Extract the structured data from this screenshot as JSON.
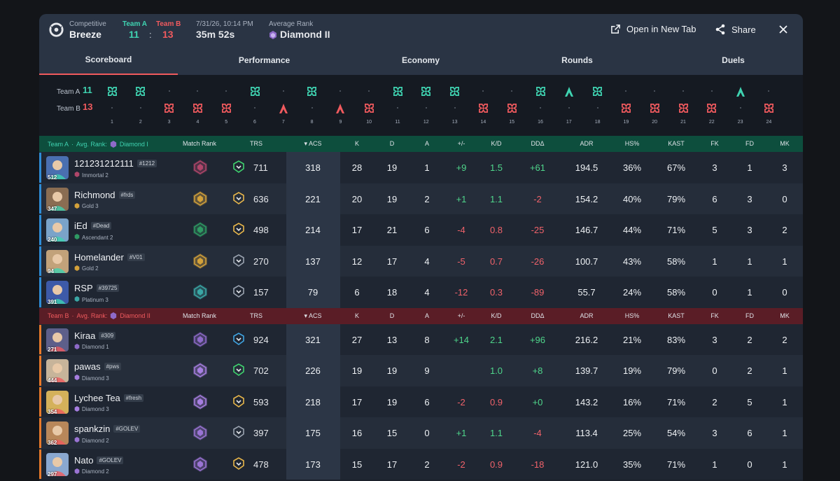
{
  "header": {
    "mode_label": "Competitive",
    "map": "Breeze",
    "team_a_label": "Team A",
    "team_b_label": "Team B",
    "team_a_score": "11",
    "team_b_score": "13",
    "colon": ":",
    "datetime": "7/31/26, 10:14 PM",
    "duration": "35m 52s",
    "avg_rank_label": "Average Rank",
    "avg_rank": "Diamond II",
    "open_new_tab": "Open in New Tab",
    "share": "Share"
  },
  "tabs": [
    {
      "label": "Scoreboard",
      "active": true
    },
    {
      "label": "Performance"
    },
    {
      "label": "Economy"
    },
    {
      "label": "Rounds"
    },
    {
      "label": "Duels"
    }
  ],
  "rounds": {
    "team_a_label": "Team A",
    "team_b_label": "Team B",
    "team_a_score": "11",
    "team_b_score": "13",
    "winners": [
      "A",
      "A",
      "B",
      "B",
      "B",
      "A",
      "B",
      "A",
      "B",
      "B",
      "A",
      "A",
      "A",
      "B",
      "B",
      "A",
      "A",
      "A",
      "B",
      "B",
      "B",
      "B",
      "A",
      "B"
    ],
    "icons": [
      "elim",
      "elim",
      "elim",
      "elim",
      "elim",
      "elim",
      "spike",
      "elim",
      "spike",
      "elim",
      "elim",
      "elim",
      "elim",
      "elim",
      "elim",
      "elim",
      "spike",
      "elim",
      "elim",
      "elim",
      "elim",
      "elim",
      "spike",
      "elim"
    ],
    "numbers": [
      "1",
      "2",
      "3",
      "4",
      "5",
      "6",
      "7",
      "8",
      "9",
      "10",
      "11",
      "12",
      "13",
      "14",
      "15",
      "16",
      "17",
      "18",
      "19",
      "20",
      "21",
      "22",
      "23",
      "24"
    ]
  },
  "columns": [
    "Match Rank",
    "TRS",
    "ACS",
    "K",
    "D",
    "A",
    "+/-",
    "K/D",
    "DDΔ",
    "ADR",
    "HS%",
    "KAST",
    "FK",
    "FD",
    "MK"
  ],
  "team_a": {
    "label": "Team A",
    "avg_rank_label": "Avg. Rank:",
    "avg_rank": "Diamond I",
    "color": "#3fd3b1",
    "players": [
      {
        "name": "121231212111",
        "tag": "#1212",
        "rank": "Immortal 2",
        "level": "512",
        "bar": "#2f8cd6",
        "rank_color": "#b0466a",
        "trs": "711",
        "trs_color": "#3fd36e",
        "acs": "318",
        "k": "28",
        "d": "19",
        "a": "1",
        "pm": "+9",
        "kd": "1.5",
        "dd": "+61",
        "adr": "194.5",
        "hs": "36%",
        "kast": "67%",
        "fk": "3",
        "fd": "1",
        "mk": "3"
      },
      {
        "name": "Richmond",
        "tag": "#frds",
        "rank": "Gold 3",
        "level": "347",
        "bar": "#2f8cd6",
        "rank_color": "#d3a13a",
        "trs": "636",
        "trs_color": "#e8b64a",
        "acs": "221",
        "k": "20",
        "d": "19",
        "a": "2",
        "pm": "+1",
        "kd": "1.1",
        "dd": "-2",
        "adr": "154.2",
        "hs": "40%",
        "kast": "79%",
        "fk": "6",
        "fd": "3",
        "mk": "0"
      },
      {
        "name": "iEd",
        "tag": "#Dead",
        "rank": "Ascendant 2",
        "level": "240",
        "bar": "#2f8cd6",
        "rank_color": "#2f9a63",
        "trs": "498",
        "trs_color": "#e8b64a",
        "acs": "214",
        "k": "17",
        "d": "21",
        "a": "6",
        "pm": "-4",
        "kd": "0.8",
        "dd": "-25",
        "adr": "146.7",
        "hs": "44%",
        "kast": "71%",
        "fk": "5",
        "fd": "3",
        "mk": "2"
      },
      {
        "name": "Homelander",
        "tag": "#V01",
        "rank": "Gold 2",
        "level": "94",
        "bar": "#2f8cd6",
        "rank_color": "#d3a13a",
        "trs": "270",
        "trs_color": "#9aa3b0",
        "acs": "137",
        "k": "12",
        "d": "17",
        "a": "4",
        "pm": "-5",
        "kd": "0.7",
        "dd": "-26",
        "adr": "100.7",
        "hs": "43%",
        "kast": "58%",
        "fk": "1",
        "fd": "1",
        "mk": "1"
      },
      {
        "name": "RSP",
        "tag": "#39725",
        "rank": "Platinum 3",
        "level": "391",
        "bar": "#2f8cd6",
        "rank_color": "#3aa7a5",
        "trs": "157",
        "trs_color": "#9aa3b0",
        "acs": "79",
        "k": "6",
        "d": "18",
        "a": "4",
        "pm": "-12",
        "kd": "0.3",
        "dd": "-89",
        "adr": "55.7",
        "hs": "24%",
        "kast": "58%",
        "fk": "0",
        "fd": "1",
        "mk": "0"
      }
    ]
  },
  "team_b": {
    "label": "Team B",
    "avg_rank_label": "Avg. Rank:",
    "avg_rank": "Diamond II",
    "color": "#f05a5e",
    "players": [
      {
        "name": "Kiraa",
        "tag": "#309",
        "rank": "Diamond 1",
        "level": "271",
        "bar": "#e87a2a",
        "rank_color": "#8d6ac8",
        "trs": "924",
        "trs_color": "#3fa3e0",
        "acs": "321",
        "k": "27",
        "d": "13",
        "a": "8",
        "pm": "+14",
        "kd": "2.1",
        "dd": "+96",
        "adr": "216.2",
        "hs": "21%",
        "kast": "83%",
        "fk": "3",
        "fd": "2",
        "mk": "2"
      },
      {
        "name": "pawas",
        "tag": "#pws",
        "rank": "Diamond 3",
        "level": "444",
        "bar": "#e87a2a",
        "rank_color": "#a67ee0",
        "trs": "702",
        "trs_color": "#3fd36e",
        "acs": "226",
        "k": "19",
        "d": "19",
        "a": "9",
        "pm": "",
        "kd": "1.0",
        "dd": "+8",
        "adr": "139.7",
        "hs": "19%",
        "kast": "79%",
        "fk": "0",
        "fd": "2",
        "mk": "1"
      },
      {
        "name": "Lychee Tea",
        "tag": "#fresh",
        "rank": "Diamond 3",
        "level": "354",
        "bar": "#e87a2a",
        "rank_color": "#a67ee0",
        "trs": "593",
        "trs_color": "#e8b64a",
        "acs": "218",
        "k": "17",
        "d": "19",
        "a": "6",
        "pm": "-2",
        "kd": "0.9",
        "dd": "+0",
        "adr": "143.2",
        "hs": "16%",
        "kast": "71%",
        "fk": "2",
        "fd": "5",
        "mk": "1"
      },
      {
        "name": "spankzin",
        "tag": "#GOLEV",
        "rank": "Diamond 2",
        "level": "362",
        "bar": "#e87a2a",
        "rank_color": "#9a74d4",
        "trs": "397",
        "trs_color": "#9aa3b0",
        "acs": "175",
        "k": "16",
        "d": "15",
        "a": "0",
        "pm": "+1",
        "kd": "1.1",
        "dd": "-4",
        "adr": "113.4",
        "hs": "25%",
        "kast": "54%",
        "fk": "3",
        "fd": "6",
        "mk": "1"
      },
      {
        "name": "Nato",
        "tag": "#GOLEV",
        "rank": "Diamond 2",
        "level": "297",
        "bar": "#e87a2a",
        "rank_color": "#9a74d4",
        "trs": "478",
        "trs_color": "#e8b64a",
        "acs": "173",
        "k": "15",
        "d": "17",
        "a": "2",
        "pm": "-2",
        "kd": "0.9",
        "dd": "-18",
        "adr": "121.0",
        "hs": "35%",
        "kast": "71%",
        "fk": "1",
        "fd": "0",
        "mk": "1"
      }
    ]
  }
}
